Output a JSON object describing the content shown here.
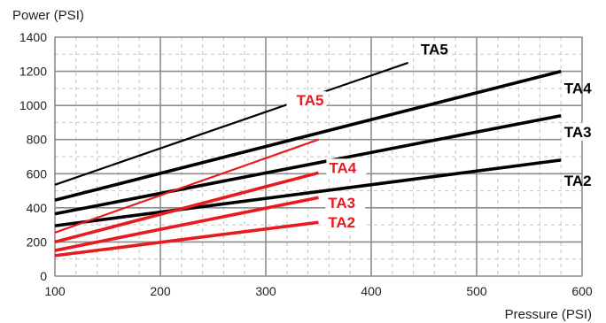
{
  "chart_data": {
    "type": "line",
    "title": "",
    "xlabel": "Pressure (PSI)",
    "ylabel": "Power (PSI)",
    "xlim": [
      100,
      600
    ],
    "ylim": [
      0,
      1400
    ],
    "xticks": [
      100,
      200,
      300,
      400,
      500,
      600
    ],
    "yticks": [
      0,
      200,
      400,
      600,
      800,
      1000,
      1200,
      1400
    ],
    "grid": true,
    "legend": "none",
    "series": [
      {
        "name": "TA5",
        "color": "#000000",
        "weight": "thin",
        "points": [
          [
            100,
            535
          ],
          [
            435,
            1250
          ]
        ]
      },
      {
        "name": "TA4",
        "color": "#000000",
        "weight": "thick",
        "points": [
          [
            100,
            445
          ],
          [
            580,
            1200
          ]
        ]
      },
      {
        "name": "TA3",
        "color": "#000000",
        "weight": "thick",
        "points": [
          [
            100,
            365
          ],
          [
            580,
            940
          ]
        ]
      },
      {
        "name": "TA2",
        "color": "#000000",
        "weight": "thick",
        "points": [
          [
            100,
            295
          ],
          [
            580,
            680
          ]
        ]
      },
      {
        "name": "TA5",
        "color": "#e8191f",
        "weight": "thin",
        "points": [
          [
            100,
            255
          ],
          [
            350,
            800
          ]
        ]
      },
      {
        "name": "TA4",
        "color": "#e8191f",
        "weight": "thick",
        "points": [
          [
            100,
            200
          ],
          [
            350,
            605
          ]
        ]
      },
      {
        "name": "TA3",
        "color": "#e8191f",
        "weight": "thick",
        "points": [
          [
            100,
            150
          ],
          [
            350,
            460
          ]
        ]
      },
      {
        "name": "TA2",
        "color": "#e8191f",
        "weight": "thick",
        "points": [
          [
            100,
            120
          ],
          [
            350,
            315
          ]
        ]
      }
    ]
  }
}
